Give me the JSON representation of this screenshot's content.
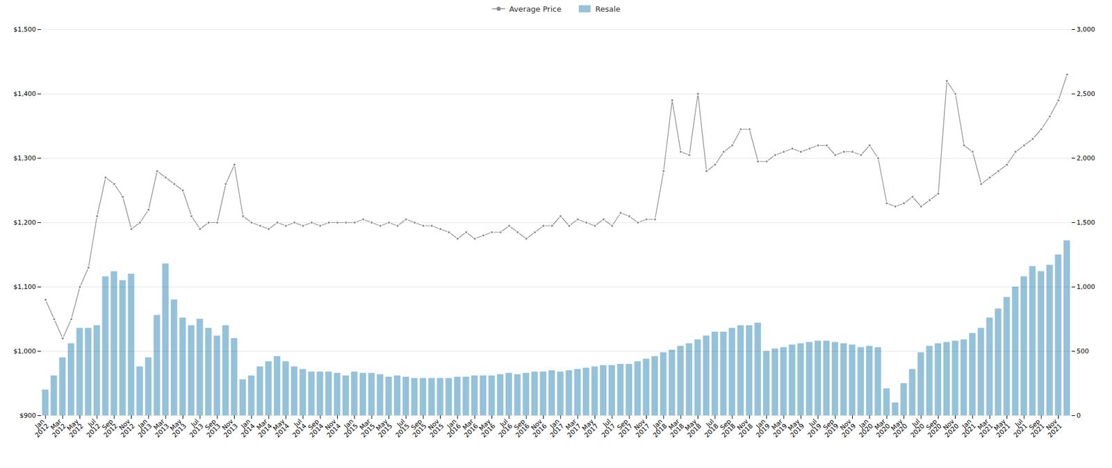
{
  "chart_data": {
    "type": "bar",
    "categories": [
      "Jan\n2012",
      null,
      "Mar\n2012",
      null,
      "May\n2012",
      null,
      "Jul\n2012",
      null,
      "Sep\n2012",
      null,
      "Nov\n2012",
      null,
      "Jan\n2013",
      null,
      "Mar\n2013",
      null,
      "May\n2013",
      null,
      "Jul\n2013",
      null,
      "Sep\n2013",
      null,
      "Nov\n2013",
      null,
      "Jan\n2014",
      null,
      "Mar\n2014",
      null,
      "May\n2014",
      null,
      "Jul\n2014",
      null,
      "Sep\n2014",
      null,
      "Nov\n2014",
      null,
      "Jan\n2015",
      null,
      "Mar\n2015",
      null,
      "May\n2015",
      null,
      "Jul\n2015",
      null,
      "Sep\n2015",
      null,
      "Nov\n2015",
      null,
      "Jan\n2016",
      null,
      "Mar\n2016",
      null,
      "May\n2016",
      null,
      "Jul\n2016",
      null,
      "Sep\n2016",
      null,
      "Nov\n2016",
      null,
      "Jan\n2017",
      null,
      "Mar\n2017",
      null,
      "May\n2017",
      null,
      "Jul\n2017",
      null,
      "Sep\n2017",
      null,
      "Nov\n2017",
      null,
      "Jan\n2018",
      null,
      "Mar\n2018",
      null,
      "May\n2018",
      null,
      "Jul\n2018",
      null,
      "Sep\n2018",
      null,
      "Nov\n2018",
      null,
      "Jan\n2019",
      null,
      "Mar\n2019",
      null,
      "May\n2019",
      null,
      "Jul\n2019",
      null,
      "Sep\n2019",
      null,
      "Nov\n2019",
      null,
      "Jan\n2020",
      null,
      "Mar\n2020",
      null,
      "May\n2020",
      null,
      "Jul\n2020",
      null,
      "Sep\n2020",
      null,
      "Nov\n2020",
      null,
      "Jan\n2021",
      null,
      "Mar\n2021",
      null,
      "May\n2021",
      null,
      "Jul\n2021",
      null,
      "Sep\n2021",
      null,
      "Nov\n2021",
      null
    ],
    "series": [
      {
        "name": "Average Price",
        "type": "line",
        "color": "#888888",
        "marker": "circle",
        "axis": "y",
        "values": [
          1080,
          1050,
          1020,
          1050,
          1100,
          1130,
          1210,
          1270,
          1260,
          1240,
          1190,
          1200,
          1220,
          1280,
          1270,
          1260,
          1250,
          1210,
          1190,
          1200,
          1200,
          1260,
          1290,
          1210,
          1200,
          1195,
          1190,
          1200,
          1195,
          1200,
          1195,
          1200,
          1195,
          1200,
          1200,
          1200,
          1200,
          1205,
          1200,
          1195,
          1200,
          1195,
          1205,
          1200,
          1195,
          1195,
          1190,
          1185,
          1175,
          1185,
          1175,
          1180,
          1185,
          1185,
          1195,
          1185,
          1175,
          1185,
          1195,
          1195,
          1210,
          1195,
          1205,
          1200,
          1195,
          1205,
          1195,
          1215,
          1210,
          1200,
          1205,
          1205,
          1280,
          1390,
          1310,
          1305,
          1400,
          1280,
          1290,
          1310,
          1320,
          1345,
          1345,
          1295,
          1295,
          1305,
          1310,
          1315,
          1310,
          1315,
          1320,
          1320,
          1305,
          1310,
          1310,
          1305,
          1320,
          1300,
          1230,
          1225,
          1230,
          1240,
          1225,
          1235,
          1245,
          1420,
          1400,
          1320,
          1310,
          1260,
          1270,
          1280,
          1290,
          1310,
          1320,
          1330,
          1345,
          1365,
          1390,
          1430
        ]
      },
      {
        "name": "Resale",
        "type": "bar",
        "color": "#7ab3d0",
        "axis": "y2",
        "values": [
          200,
          310,
          450,
          560,
          680,
          680,
          700,
          1080,
          1120,
          1050,
          1100,
          380,
          450,
          780,
          1180,
          900,
          760,
          700,
          750,
          680,
          620,
          700,
          600,
          280,
          310,
          380,
          420,
          460,
          420,
          380,
          360,
          340,
          340,
          340,
          330,
          310,
          340,
          330,
          330,
          320,
          300,
          310,
          300,
          290,
          290,
          290,
          290,
          290,
          300,
          300,
          310,
          310,
          310,
          320,
          330,
          320,
          330,
          340,
          340,
          350,
          340,
          350,
          360,
          370,
          380,
          390,
          390,
          400,
          400,
          420,
          440,
          460,
          490,
          510,
          540,
          560,
          590,
          620,
          650,
          650,
          680,
          700,
          700,
          720,
          500,
          520,
          530,
          550,
          560,
          570,
          580,
          580,
          570,
          560,
          550,
          530,
          540,
          530,
          210,
          100,
          250,
          360,
          490,
          540,
          560,
          570,
          580,
          590,
          640,
          680,
          760,
          830,
          920,
          1000,
          1080,
          1160,
          1120,
          1170,
          1250,
          1360
        ]
      }
    ],
    "ylim": [
      900,
      1500
    ],
    "yticks": [
      {
        "value": 900,
        "label": "$900"
      },
      {
        "value": 1000,
        "label": "$1,000"
      },
      {
        "value": 1100,
        "label": "$1,100"
      },
      {
        "value": 1200,
        "label": "$1,200"
      },
      {
        "value": 1300,
        "label": "$1,300"
      },
      {
        "value": 1400,
        "label": "$1,400"
      },
      {
        "value": 1500,
        "label": "$1,500"
      }
    ],
    "y2lim": [
      0,
      3000
    ],
    "y2ticks": [
      0,
      500,
      {
        "value": 1000,
        "label": "1,000"
      },
      {
        "value": 1500,
        "label": "1,500"
      },
      {
        "value": 2000,
        "label": "2,000"
      },
      {
        "value": 2500,
        "label": "2,500"
      },
      {
        "value": 3000,
        "label": "3,000"
      }
    ],
    "grid": true,
    "legend": "top"
  }
}
